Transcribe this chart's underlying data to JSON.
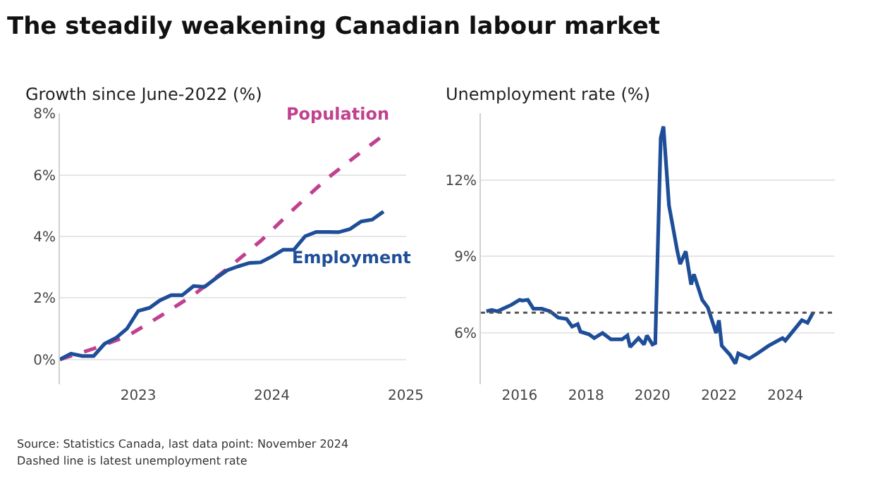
{
  "chart_data": [
    {
      "type": "line",
      "title": "The steadily weakening Canadian labour market",
      "subtitle": "Growth since June-2022 (%)",
      "series": [
        {
          "name": "Population",
          "color": "#c0418f",
          "line_style": "dashed",
          "x": [
            "2022-06",
            "2022-09",
            "2022-12",
            "2023-03",
            "2023-06",
            "2023-09",
            "2023-12",
            "2024-03",
            "2024-06",
            "2024-09",
            "2024-11"
          ],
          "values": [
            0,
            0.35,
            0.75,
            1.4,
            2.1,
            2.95,
            3.85,
            4.9,
            5.9,
            6.75,
            7.3
          ]
        },
        {
          "name": "Employment",
          "color": "#1f4e99",
          "line_style": "solid",
          "x": [
            "2022-06",
            "2022-07",
            "2022-08",
            "2022-09",
            "2022-10",
            "2022-11",
            "2022-12",
            "2023-01",
            "2023-02",
            "2023-03",
            "2023-04",
            "2023-05",
            "2023-06",
            "2023-07",
            "2023-08",
            "2023-09",
            "2023-10",
            "2023-11",
            "2023-12",
            "2024-01",
            "2024-02",
            "2024-03",
            "2024-04",
            "2024-05",
            "2024-06",
            "2024-07",
            "2024-08",
            "2024-09",
            "2024-10",
            "2024-11"
          ],
          "values": [
            0,
            0.19,
            0.11,
            0.11,
            0.51,
            0.7,
            1.0,
            1.58,
            1.68,
            1.92,
            2.09,
            2.09,
            2.39,
            2.36,
            2.64,
            2.9,
            3.03,
            3.14,
            3.16,
            3.35,
            3.57,
            3.57,
            4.01,
            4.15,
            4.15,
            4.14,
            4.24,
            4.49,
            4.55,
            4.81
          ]
        }
      ],
      "xlim": [
        "2022-06-01",
        "2025-01-01"
      ],
      "xticks": [
        "2023",
        "2024",
        "2025"
      ],
      "ylim": [
        -0.8,
        8
      ],
      "yticks": [
        {
          "value": 0,
          "label": "0%"
        },
        {
          "value": 2,
          "label": "2%"
        },
        {
          "value": 4,
          "label": "4%"
        },
        {
          "value": 6,
          "label": "6%"
        },
        {
          "value": 8,
          "label": "8%"
        }
      ],
      "grid": "y",
      "annotations": [
        "Source: Statistics Canada, last data point: November 2024",
        "Dashed line is latest unemployment rate"
      ]
    },
    {
      "type": "line",
      "subtitle": "Unemployment rate (%)",
      "series": [
        {
          "color": "#1f4e99",
          "x": [
            "2015-01",
            "2015-03",
            "2015-05",
            "2015-08",
            "2015-10",
            "2016-01",
            "2016-02",
            "2016-04",
            "2016-06",
            "2016-09",
            "2016-12",
            "2017-03",
            "2017-06",
            "2017-08",
            "2017-10",
            "2017-11",
            "2018-02",
            "2018-04",
            "2018-07",
            "2018-10",
            "2019-02",
            "2019-04",
            "2019-05",
            "2019-08",
            "2019-10",
            "2019-11",
            "2020-01",
            "2020-02",
            "2020-04",
            "2020-05",
            "2020-07",
            "2020-10",
            "2020-11",
            "2021-01",
            "2021-03",
            "2021-04",
            "2021-07",
            "2021-09",
            "2021-12",
            "2022-01",
            "2022-02",
            "2022-05",
            "2022-07",
            "2022-08",
            "2022-12",
            "2023-03",
            "2023-07",
            "2023-12",
            "2024-01",
            "2024-04",
            "2024-07",
            "2024-09",
            "2024-11"
          ],
          "values": [
            6.85,
            6.9,
            6.85,
            7.0,
            7.1,
            7.3,
            7.27,
            7.3,
            6.95,
            6.95,
            6.85,
            6.6,
            6.55,
            6.25,
            6.35,
            6.05,
            5.95,
            5.8,
            6.0,
            5.75,
            5.75,
            5.9,
            5.45,
            5.8,
            5.55,
            5.9,
            5.55,
            5.6,
            13.65,
            14.1,
            11.0,
            9.2,
            8.7,
            9.2,
            7.9,
            8.3,
            7.3,
            7.0,
            6.0,
            6.5,
            5.5,
            5.15,
            4.8,
            5.2,
            5.0,
            5.2,
            5.5,
            5.8,
            5.7,
            6.1,
            6.5,
            6.4,
            6.8
          ]
        }
      ],
      "xlim": [
        "2014-11-01",
        "2025-07-01"
      ],
      "xticks": [
        "2016",
        "2018",
        "2020",
        "2022",
        "2024"
      ],
      "ylim": [
        4.0,
        14.6
      ],
      "yticks": [
        {
          "value": 6,
          "label": "6%"
        },
        {
          "value": 9,
          "label": "9%"
        },
        {
          "value": 12,
          "label": "12%"
        }
      ],
      "grid": "y",
      "ref_lines": [
        {
          "axis": "y",
          "value": 6.8,
          "color": "#555555",
          "line_style": "dotted"
        }
      ]
    }
  ]
}
